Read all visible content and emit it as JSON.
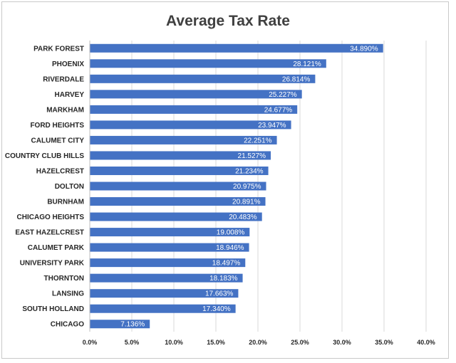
{
  "chart_data": {
    "type": "bar",
    "orientation": "horizontal",
    "title": "Average Tax Rate",
    "xlabel": "",
    "ylabel": "",
    "xlim": [
      0,
      40
    ],
    "grid": true,
    "bar_color": "#4472c4",
    "categories": [
      "PARK FOREST",
      "PHOENIX",
      "RIVERDALE",
      "HARVEY",
      "MARKHAM",
      "FORD HEIGHTS",
      "CALUMET CITY",
      "COUNTRY CLUB HILLS",
      "HAZELCREST",
      "DOLTON",
      "BURNHAM",
      "CHICAGO HEIGHTS",
      "EAST HAZELCREST",
      "CALUMET PARK",
      "UNIVERSITY PARK",
      "THORNTON",
      "LANSING",
      "SOUTH HOLLAND",
      "CHICAGO"
    ],
    "values": [
      34.89,
      28.121,
      26.814,
      25.227,
      24.677,
      23.947,
      22.251,
      21.527,
      21.234,
      20.975,
      20.891,
      20.483,
      19.008,
      18.946,
      18.497,
      18.183,
      17.663,
      17.34,
      7.136
    ],
    "value_labels": [
      "34.890%",
      "28.121%",
      "26.814%",
      "25.227%",
      "24.677%",
      "23.947%",
      "22.251%",
      "21.527%",
      "21.234%",
      "20.975%",
      "20.891%",
      "20.483%",
      "19.008%",
      "18.946%",
      "18.497%",
      "18.183%",
      "17.663%",
      "17.340%",
      "7.136%"
    ],
    "x_ticks": [
      0,
      5,
      10,
      15,
      20,
      25,
      30,
      35,
      40
    ],
    "x_tick_labels": [
      "0.0%",
      "5.0%",
      "10.0%",
      "15.0%",
      "20.0%",
      "25.0%",
      "30.0%",
      "35.0%",
      "40.0%"
    ]
  }
}
